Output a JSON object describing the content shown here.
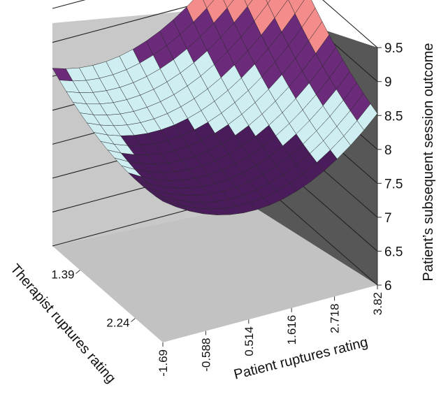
{
  "chart_data": {
    "type": "surface",
    "title": "",
    "xlabel": "Patient ruptures rating",
    "ylabel": "Therapist ruptures rating",
    "zlabel": "Patient’s subsequent session outcome",
    "x_ticks": [
      "-1.69",
      "-0.588",
      "0.514",
      "1.616",
      "2.718",
      "3.82"
    ],
    "y_ticks": [
      "1.39",
      "2.24"
    ],
    "z_ticks": [
      "6",
      "6.5",
      "7",
      "7.5",
      "8",
      "8.5",
      "9",
      "9.5"
    ],
    "zlim": [
      6,
      9.5
    ],
    "xlim": [
      -1.69,
      3.82
    ],
    "surface_z_range": [
      7.5,
      9.5
    ],
    "surface_z_at_corners": {
      "x_min_y_min": 9.1,
      "x_max_y_min": 9.1,
      "x_min_y_max": 8.4,
      "x_max_y_max": 9.4,
      "minimum": 7.6
    },
    "color_bands": [
      {
        "range": "7.5-8",
        "color": "#4a1c5c"
      },
      {
        "range": "8-8.5",
        "color": "#cfeef2"
      },
      {
        "range": "8.5-9",
        "color": "#6b2a7a"
      },
      {
        "range": "9-9.5",
        "color": "#f48c8c"
      },
      {
        "range": "9.5-10",
        "color": "#9a9ad8"
      }
    ],
    "grid": true,
    "walls": {
      "back": "#c8c8c8",
      "side": "#555555",
      "floor": "#c0c0c0"
    }
  }
}
